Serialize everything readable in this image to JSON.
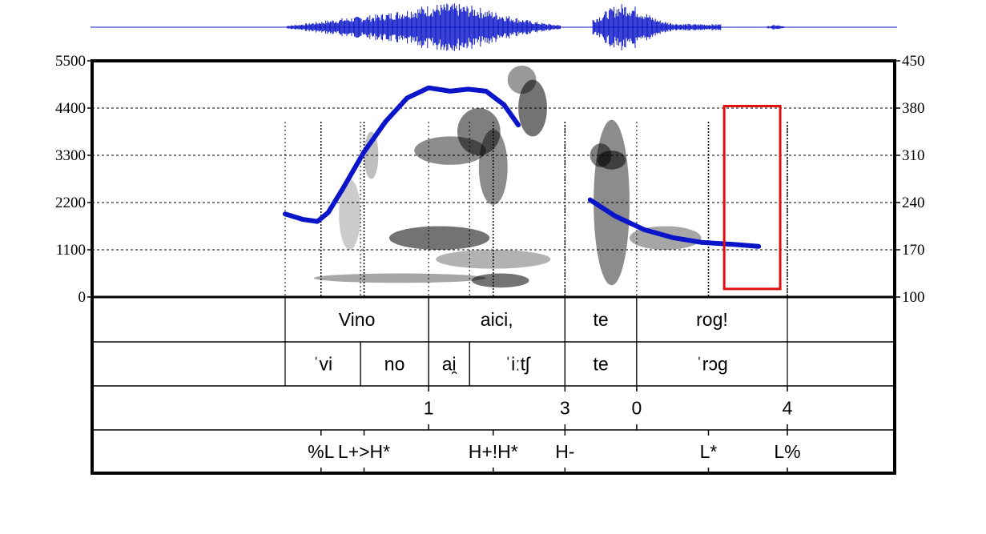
{
  "chart_data": {
    "type": "line",
    "left_axis": {
      "ylim": [
        0,
        5500
      ],
      "ticks": [
        "5500",
        "4400",
        "3300",
        "2200",
        "1100",
        "0"
      ],
      "tick_values": [
        5500,
        4400,
        3300,
        2200,
        1100,
        0
      ]
    },
    "right_axis": {
      "ylim": [
        100,
        450
      ],
      "ticks": [
        "450",
        "380",
        "310",
        "240",
        "170",
        "100"
      ],
      "tick_values": [
        450,
        380,
        310,
        240,
        170,
        100
      ]
    },
    "grid": "dashed horizontal",
    "colors": {
      "pitch": "#0a14c8",
      "waveform": "#0a14c8",
      "highlight": "#e01010",
      "frame": "#000000"
    },
    "series": [
      {
        "values_right_axis": [
          [
            0.0,
            223
          ],
          [
            0.025,
            215
          ],
          [
            0.045,
            212
          ],
          [
            0.06,
            225
          ],
          [
            0.08,
            260
          ],
          [
            0.11,
            315
          ],
          [
            0.14,
            360
          ],
          [
            0.17,
            395
          ],
          [
            0.2,
            410
          ],
          [
            0.23,
            405
          ],
          [
            0.255,
            408
          ],
          [
            0.28,
            405
          ],
          [
            0.305,
            385
          ],
          [
            0.325,
            355
          ]
        ]
      },
      {
        "values_right_axis": [
          [
            0.425,
            244
          ],
          [
            0.46,
            220
          ],
          [
            0.5,
            200
          ],
          [
            0.54,
            188
          ],
          [
            0.58,
            181
          ],
          [
            0.625,
            178
          ],
          [
            0.66,
            175
          ]
        ]
      }
    ],
    "highlight_box": {
      "t_start": 0.612,
      "t_end": 0.69,
      "y_low_right_axis": 112,
      "y_high_right_axis": 383
    }
  },
  "tiers": {
    "words": [
      {
        "text": "Vino",
        "t_start": 0.0,
        "t_end": 0.2
      },
      {
        "text": "aici,",
        "t_start": 0.2,
        "t_end": 0.39
      },
      {
        "text": "te",
        "t_start": 0.39,
        "t_end": 0.49
      },
      {
        "text": "rog!",
        "t_start": 0.49,
        "t_end": 0.7
      }
    ],
    "syllables": [
      {
        "text": "ˈvi",
        "t_start": 0.0,
        "t_end": 0.105
      },
      {
        "text": "no",
        "t_start": 0.105,
        "t_end": 0.2
      },
      {
        "text": "ai̯",
        "t_start": 0.2,
        "t_end": 0.257
      },
      {
        "text": "ˈiːtʃ",
        "t_start": 0.257,
        "t_end": 0.39
      },
      {
        "text": "te",
        "t_start": 0.39,
        "t_end": 0.49
      },
      {
        "text": "ˈrɔɡ",
        "t_start": 0.49,
        "t_end": 0.7
      }
    ],
    "breaks": [
      {
        "text": "1",
        "t": 0.2
      },
      {
        "text": "3",
        "t": 0.39
      },
      {
        "text": "0",
        "t": 0.49
      },
      {
        "text": "4",
        "t": 0.7
      }
    ],
    "tones": [
      {
        "text": "%L",
        "t": 0.05
      },
      {
        "text": "L+>H*",
        "t": 0.11
      },
      {
        "text": "H+!H*",
        "t": 0.29
      },
      {
        "text": "H-",
        "t": 0.39
      },
      {
        "text": "L*",
        "t": 0.59
      },
      {
        "text": "L%",
        "t": 0.7
      }
    ]
  }
}
